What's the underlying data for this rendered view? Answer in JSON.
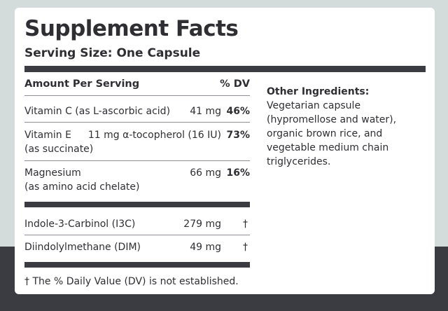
{
  "title": "Supplement Facts",
  "serving_size": "Serving Size: One Capsule",
  "header": {
    "amount_label": "Amount Per Serving",
    "dv_label": "% DV"
  },
  "nutrients": [
    {
      "name": "Vitamin C (as L-ascorbic acid)",
      "amount": "41 mg",
      "dv": "46%"
    },
    {
      "name": "Vitamin E",
      "amount": "11 mg α-tocopherol (16 IU)",
      "sub": "(as succinate)",
      "dv": "73%"
    },
    {
      "name": "Magnesium",
      "amount": "66 mg",
      "sub": "(as amino acid chelate)",
      "dv": "16%"
    }
  ],
  "other_compounds": [
    {
      "name": "Indole-3-Carbinol (I3C)",
      "amount": "279 mg",
      "dv": "†"
    },
    {
      "name": "Diindolylmethane (DIM)",
      "amount": "49 mg",
      "dv": "†"
    }
  ],
  "other_ingredients": {
    "label": "Other Ingredients:",
    "text": "Vegetarian capsule (hypromellose and water), organic brown rice, and vegetable medium chain triglycerides."
  },
  "footnote": "† The % Daily Value (DV) is not established."
}
